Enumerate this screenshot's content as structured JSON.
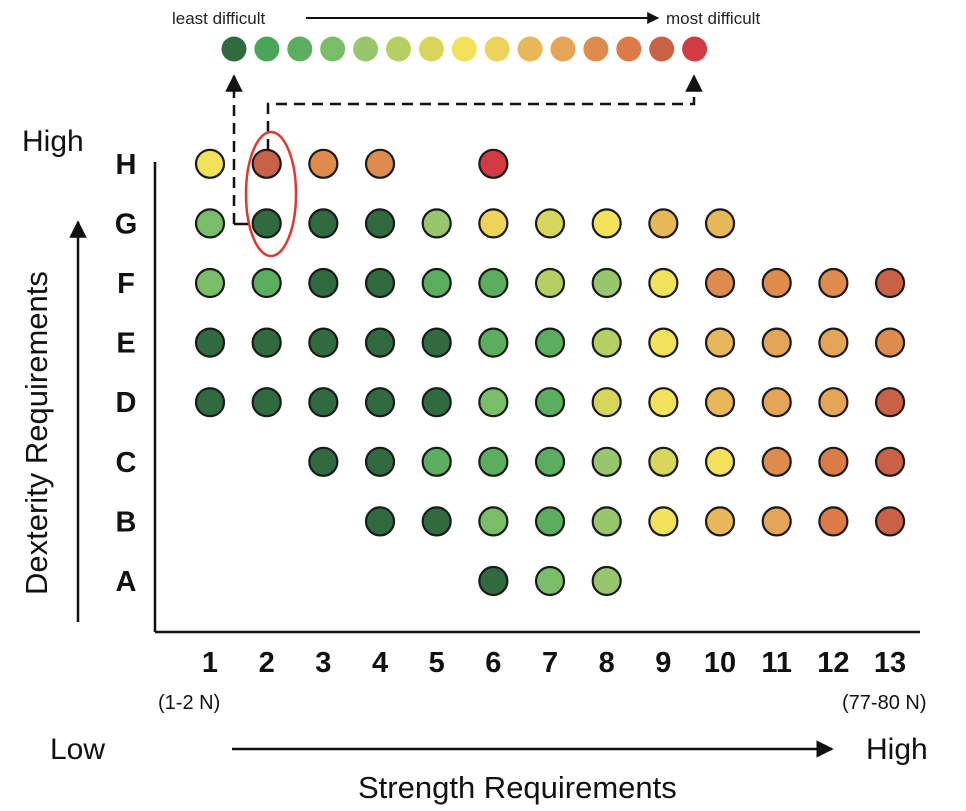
{
  "chart_data": {
    "type": "scatter",
    "difficulty_scale": {
      "least_label": "least difficult",
      "most_label": "most difficult",
      "colors": [
        "#2f6b3e",
        "#4aa55a",
        "#5cae5f",
        "#79bd69",
        "#98c66d",
        "#b6cf62",
        "#d6d65b",
        "#f1e25a",
        "#ecd35a",
        "#e8b75a",
        "#e5a557",
        "#dd8c4e",
        "#dd7b48",
        "#c86146",
        "#d23a44"
      ]
    },
    "y_axis": {
      "title": "Dexterity Requirements",
      "high_label": "High",
      "low_label": "Low",
      "categories": [
        "A",
        "B",
        "C",
        "D",
        "E",
        "F",
        "G",
        "H"
      ]
    },
    "x_axis": {
      "title": "Strength Requirements",
      "high_label": "High",
      "categories": [
        "1",
        "2",
        "3",
        "4",
        "5",
        "6",
        "7",
        "8",
        "9",
        "10",
        "11",
        "12",
        "13"
      ],
      "first_unit_label": "(1-2 N)",
      "last_unit_label": "(77-80 N)"
    },
    "highlighted_cell": {
      "x": "2",
      "y": "H"
    },
    "points": [
      {
        "y": "H",
        "x": "1",
        "level": 8
      },
      {
        "y": "H",
        "x": "2",
        "level": 14
      },
      {
        "y": "H",
        "x": "3",
        "level": 12
      },
      {
        "y": "H",
        "x": "4",
        "level": 12
      },
      {
        "y": "H",
        "x": "6",
        "level": 15
      },
      {
        "y": "G",
        "x": "1",
        "level": 4
      },
      {
        "y": "G",
        "x": "2",
        "level": 1
      },
      {
        "y": "G",
        "x": "3",
        "level": 1
      },
      {
        "y": "G",
        "x": "4",
        "level": 1
      },
      {
        "y": "G",
        "x": "5",
        "level": 5
      },
      {
        "y": "G",
        "x": "6",
        "level": 9
      },
      {
        "y": "G",
        "x": "7",
        "level": 7
      },
      {
        "y": "G",
        "x": "8",
        "level": 8
      },
      {
        "y": "G",
        "x": "9",
        "level": 10
      },
      {
        "y": "G",
        "x": "10",
        "level": 10
      },
      {
        "y": "F",
        "x": "1",
        "level": 4
      },
      {
        "y": "F",
        "x": "2",
        "level": 3
      },
      {
        "y": "F",
        "x": "3",
        "level": 1
      },
      {
        "y": "F",
        "x": "4",
        "level": 1
      },
      {
        "y": "F",
        "x": "5",
        "level": 3
      },
      {
        "y": "F",
        "x": "6",
        "level": 3
      },
      {
        "y": "F",
        "x": "7",
        "level": 6
      },
      {
        "y": "F",
        "x": "8",
        "level": 5
      },
      {
        "y": "F",
        "x": "9",
        "level": 8
      },
      {
        "y": "F",
        "x": "10",
        "level": 12
      },
      {
        "y": "F",
        "x": "11",
        "level": 12
      },
      {
        "y": "F",
        "x": "12",
        "level": 12
      },
      {
        "y": "F",
        "x": "13",
        "level": 14
      },
      {
        "y": "E",
        "x": "1",
        "level": 1
      },
      {
        "y": "E",
        "x": "2",
        "level": 1
      },
      {
        "y": "E",
        "x": "3",
        "level": 1
      },
      {
        "y": "E",
        "x": "4",
        "level": 1
      },
      {
        "y": "E",
        "x": "5",
        "level": 1
      },
      {
        "y": "E",
        "x": "6",
        "level": 3
      },
      {
        "y": "E",
        "x": "7",
        "level": 3
      },
      {
        "y": "E",
        "x": "8",
        "level": 6
      },
      {
        "y": "E",
        "x": "9",
        "level": 8
      },
      {
        "y": "E",
        "x": "10",
        "level": 10
      },
      {
        "y": "E",
        "x": "11",
        "level": 11
      },
      {
        "y": "E",
        "x": "12",
        "level": 11
      },
      {
        "y": "E",
        "x": "13",
        "level": 12
      },
      {
        "y": "D",
        "x": "1",
        "level": 1
      },
      {
        "y": "D",
        "x": "2",
        "level": 1
      },
      {
        "y": "D",
        "x": "3",
        "level": 1
      },
      {
        "y": "D",
        "x": "4",
        "level": 1
      },
      {
        "y": "D",
        "x": "5",
        "level": 1
      },
      {
        "y": "D",
        "x": "6",
        "level": 4
      },
      {
        "y": "D",
        "x": "7",
        "level": 3
      },
      {
        "y": "D",
        "x": "8",
        "level": 7
      },
      {
        "y": "D",
        "x": "9",
        "level": 8
      },
      {
        "y": "D",
        "x": "10",
        "level": 10
      },
      {
        "y": "D",
        "x": "11",
        "level": 11
      },
      {
        "y": "D",
        "x": "12",
        "level": 11
      },
      {
        "y": "D",
        "x": "13",
        "level": 14
      },
      {
        "y": "C",
        "x": "3",
        "level": 1
      },
      {
        "y": "C",
        "x": "4",
        "level": 1
      },
      {
        "y": "C",
        "x": "5",
        "level": 3
      },
      {
        "y": "C",
        "x": "6",
        "level": 3
      },
      {
        "y": "C",
        "x": "7",
        "level": 3
      },
      {
        "y": "C",
        "x": "8",
        "level": 5
      },
      {
        "y": "C",
        "x": "9",
        "level": 7
      },
      {
        "y": "C",
        "x": "10",
        "level": 8
      },
      {
        "y": "C",
        "x": "11",
        "level": 12
      },
      {
        "y": "C",
        "x": "12",
        "level": 13
      },
      {
        "y": "C",
        "x": "13",
        "level": 14
      },
      {
        "y": "B",
        "x": "4",
        "level": 1
      },
      {
        "y": "B",
        "x": "5",
        "level": 1
      },
      {
        "y": "B",
        "x": "6",
        "level": 4
      },
      {
        "y": "B",
        "x": "7",
        "level": 3
      },
      {
        "y": "B",
        "x": "8",
        "level": 5
      },
      {
        "y": "B",
        "x": "9",
        "level": 8
      },
      {
        "y": "B",
        "x": "10",
        "level": 10
      },
      {
        "y": "B",
        "x": "11",
        "level": 11
      },
      {
        "y": "B",
        "x": "12",
        "level": 13
      },
      {
        "y": "B",
        "x": "13",
        "level": 14
      },
      {
        "y": "A",
        "x": "6",
        "level": 1
      },
      {
        "y": "A",
        "x": "7",
        "level": 4
      },
      {
        "y": "A",
        "x": "8",
        "level": 5
      }
    ]
  }
}
